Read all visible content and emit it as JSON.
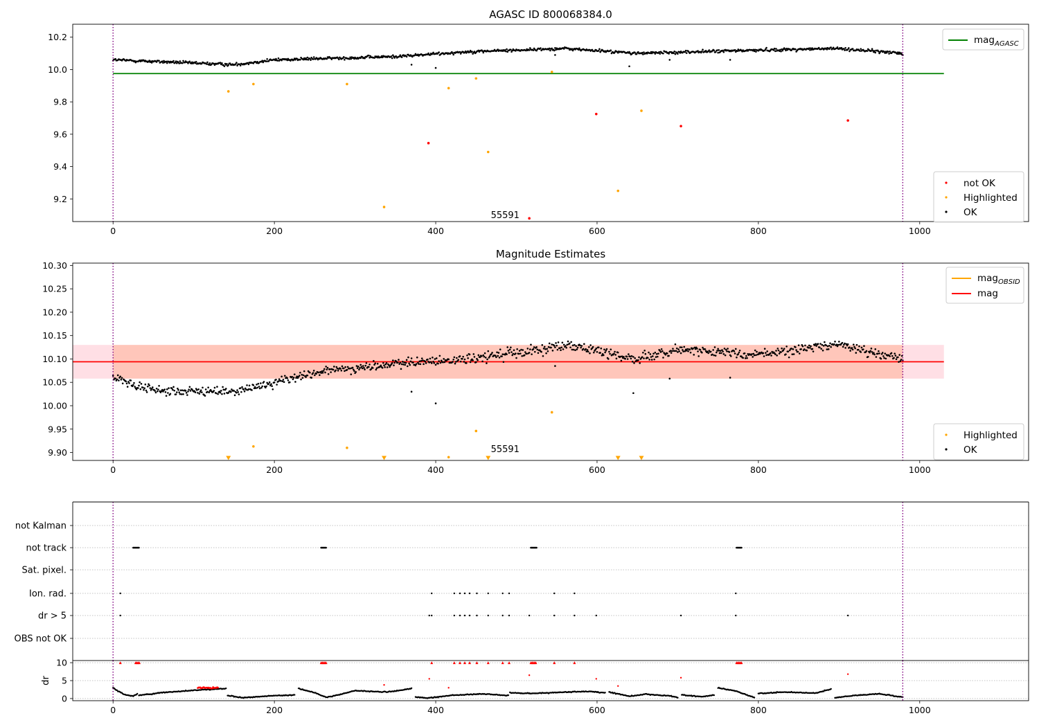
{
  "figure": {
    "title": "AGASC ID 800068384.0",
    "colors": {
      "ok": "#000000",
      "highlighted": "#ffa500",
      "not_ok": "#ff0000",
      "mag_agasc": "#008000",
      "mag": "#ff0000",
      "mag_obsid": "#ffa500",
      "band_outer": "#ffc0cb",
      "band_inner": "#ffa07a",
      "vline": "#800080",
      "grid": "#b0b0b0"
    }
  },
  "chart_data": [
    {
      "id": "top",
      "type": "scatter",
      "title": "AGASC ID 800068384.0",
      "xlim": [
        -50,
        1135
      ],
      "ylim": [
        9.06,
        10.28
      ],
      "xticks": [
        0,
        200,
        400,
        600,
        800,
        1000
      ],
      "yticks": [
        9.2,
        9.4,
        9.6,
        9.8,
        10.0,
        10.2
      ],
      "ytick_labels": [
        "9.2",
        "9.4",
        "9.6",
        "9.8",
        "10.0",
        "10.2"
      ],
      "vlines": [
        0,
        979
      ],
      "hlines": [
        {
          "name": "mag_AGASC",
          "y": 9.975,
          "x": [
            0,
            1030
          ],
          "color": "#008000"
        }
      ],
      "annotation": {
        "text": "55591",
        "x": 470,
        "y": 9.09
      },
      "series": [
        {
          "name": "OK",
          "color": "#000000",
          "ok_trend": {
            "n": 980,
            "x0": 0,
            "x1": 979,
            "knots": [
              [
                0,
                10.06
              ],
              [
                100,
                10.04
              ],
              [
                150,
                10.03
              ],
              [
                200,
                10.06
              ],
              [
                350,
                10.08
              ],
              [
                440,
                10.11
              ],
              [
                560,
                10.13
              ],
              [
                650,
                10.1
              ],
              [
                800,
                10.12
              ],
              [
                900,
                10.13
              ],
              [
                979,
                10.1
              ]
            ],
            "scatter": 0.014
          },
          "outliers": [
            [
              370,
              10.03
            ],
            [
              400,
              10.01
            ],
            [
              640,
              10.02
            ],
            [
              690,
              10.06
            ],
            [
              765,
              10.06
            ],
            [
              548,
              10.09
            ]
          ]
        },
        {
          "name": "Highlighted",
          "color": "#ffa500",
          "points": [
            [
              143,
              9.865
            ],
            [
              174,
              9.91
            ],
            [
              290,
              9.91
            ],
            [
              336,
              9.15
            ],
            [
              416,
              9.885
            ],
            [
              450,
              9.945
            ],
            [
              465,
              9.49
            ],
            [
              544,
              9.985
            ],
            [
              626,
              9.25
            ],
            [
              655,
              9.745
            ]
          ]
        },
        {
          "name": "not OK",
          "color": "#ff0000",
          "points": [
            [
              391,
              9.545
            ],
            [
              516,
              9.08
            ],
            [
              599,
              9.725
            ],
            [
              704,
              9.65
            ],
            [
              911,
              9.685
            ]
          ]
        }
      ],
      "legend_top": {
        "position": "upper right",
        "entries": [
          {
            "label": "mag",
            "sub": "AGASC",
            "color": "#008000"
          }
        ]
      },
      "legend_bottom": {
        "position": "lower right",
        "entries": [
          "not OK",
          "Highlighted",
          "OK"
        ]
      }
    },
    {
      "id": "middle",
      "type": "scatter",
      "title": "Magnitude Estimates",
      "xlim": [
        -50,
        1135
      ],
      "ylim": [
        9.883,
        10.305
      ],
      "xticks": [
        0,
        200,
        400,
        600,
        800,
        1000
      ],
      "yticks": [
        9.9,
        9.95,
        10.0,
        10.05,
        10.1,
        10.15,
        10.2,
        10.25,
        10.3
      ],
      "ytick_labels": [
        "9.90",
        "9.95",
        "10.00",
        "10.05",
        "10.10",
        "10.15",
        "10.20",
        "10.25",
        "10.30"
      ],
      "vlines": [
        0,
        979
      ],
      "hlines": [
        {
          "name": "mag",
          "y": 10.094,
          "x": [
            -50,
            1030
          ],
          "color": "#ff0000"
        }
      ],
      "bands": [
        {
          "y": [
            10.058,
            10.13
          ],
          "x": [
            -50,
            1030
          ],
          "color": "#ffc0cb",
          "alpha": 0.5
        },
        {
          "y": [
            10.058,
            10.13
          ],
          "x": [
            0,
            979
          ],
          "color": "#ffa07a",
          "alpha": 0.4
        }
      ],
      "annotation": {
        "text": "55591",
        "x": 470,
        "y": 9.895
      },
      "series": [
        {
          "name": "OK",
          "color": "#000000",
          "ok_trend": {
            "n": 980,
            "x0": 0,
            "x1": 979,
            "knots": [
              [
                0,
                10.06
              ],
              [
                60,
                10.03
              ],
              [
                150,
                10.03
              ],
              [
                250,
                10.07
              ],
              [
                350,
                10.09
              ],
              [
                450,
                10.1
              ],
              [
                560,
                10.13
              ],
              [
                650,
                10.1
              ],
              [
                700,
                10.12
              ],
              [
                800,
                10.11
              ],
              [
                900,
                10.13
              ],
              [
                979,
                10.1
              ]
            ],
            "scatter": 0.016
          },
          "outliers": [
            [
              370,
              10.03
            ],
            [
              400,
              10.005
            ],
            [
              645,
              10.027
            ],
            [
              690,
              10.058
            ],
            [
              765,
              10.06
            ],
            [
              548,
              10.085
            ]
          ]
        },
        {
          "name": "Highlighted",
          "color": "#ffa500",
          "points": [
            [
              174,
              9.913
            ],
            [
              290,
              9.91
            ],
            [
              416,
              9.89
            ],
            [
              450,
              9.946
            ],
            [
              544,
              9.986
            ]
          ],
          "below_range_markers": [
            143,
            336,
            465,
            626,
            655
          ]
        }
      ],
      "legend_top": {
        "position": "upper right",
        "entries": [
          {
            "label": "mag",
            "sub": "OBSID",
            "color": "#ffa500"
          },
          {
            "label": "mag",
            "sub": "",
            "color": "#ff0000"
          }
        ]
      },
      "legend_bottom": {
        "position": "lower right",
        "entries": [
          "Highlighted",
          "OK"
        ]
      }
    },
    {
      "id": "flags",
      "type": "scatter",
      "xlim": [
        -50,
        1135
      ],
      "categories": [
        "not Kalman",
        "not track",
        "Sat. pixel.",
        "Ion. rad.",
        "dr > 5",
        "OBS not OK"
      ],
      "vlines": [
        0,
        979
      ],
      "flags": {
        "not track": [
          [
            25,
            32
          ],
          [
            258,
            264
          ],
          [
            518,
            525
          ],
          [
            773,
            779
          ]
        ],
        "Ion. rad.": [
          9,
          395,
          423,
          430,
          436,
          442,
          451,
          465,
          483,
          491,
          547,
          572,
          772
        ],
        "dr > 5": [
          9,
          392,
          395,
          423,
          430,
          436,
          442,
          451,
          465,
          483,
          491,
          516,
          547,
          572,
          599,
          704,
          772,
          911
        ]
      }
    },
    {
      "id": "dr",
      "type": "line",
      "ylabel": "dr",
      "xlim": [
        -50,
        1135
      ],
      "ylim": [
        -0.6,
        10.6
      ],
      "xticks": [
        0,
        200,
        400,
        600,
        800,
        1000
      ],
      "yticks": [
        0,
        5,
        10
      ],
      "ytick_labels": [
        "0",
        "5",
        "10"
      ],
      "vlines": [
        0,
        979
      ],
      "segments": [
        {
          "x": [
            0,
            5,
            15,
            25,
            30
          ],
          "y": [
            3.0,
            2.2,
            1.0,
            0.7,
            1.2
          ]
        },
        {
          "x": [
            32,
            60,
            100,
            140
          ],
          "y": [
            0.9,
            1.6,
            2.3,
            2.8
          ]
        },
        {
          "x": [
            142,
            160,
            190,
            225
          ],
          "y": [
            0.9,
            0.2,
            0.7,
            1.0
          ]
        },
        {
          "x": [
            230,
            250,
            265,
            275,
            300,
            340,
            370
          ],
          "y": [
            2.8,
            1.6,
            0.3,
            0.8,
            2.2,
            1.8,
            2.8
          ]
        },
        {
          "x": [
            375,
            390,
            420,
            460,
            490
          ],
          "y": [
            0.4,
            0.1,
            0.9,
            1.3,
            0.8
          ]
        },
        {
          "x": [
            492,
            520,
            560,
            590,
            610
          ],
          "y": [
            1.6,
            1.4,
            1.8,
            2.0,
            1.6
          ]
        },
        {
          "x": [
            615,
            640,
            660,
            690,
            700
          ],
          "y": [
            1.8,
            0.6,
            1.2,
            0.7,
            0.3
          ]
        },
        {
          "x": [
            705,
            730,
            745
          ],
          "y": [
            1.0,
            0.5,
            1.0
          ]
        },
        {
          "x": [
            750,
            770,
            795
          ],
          "y": [
            3.0,
            2.2,
            0.3
          ]
        },
        {
          "x": [
            800,
            830,
            870,
            890
          ],
          "y": [
            1.4,
            1.8,
            1.5,
            2.6
          ]
        },
        {
          "x": [
            895,
            920,
            950,
            979
          ],
          "y": [
            0.2,
            0.9,
            1.3,
            0.4
          ]
        }
      ],
      "red_band": {
        "x": [
          105,
          130
        ],
        "y": 3.0
      },
      "capped_markers": {
        "y": 10,
        "groups": [
          [
            9,
            9
          ],
          [
            28,
            33
          ],
          [
            258,
            264
          ],
          [
            395,
            395
          ],
          [
            423,
            423
          ],
          [
            430,
            430
          ],
          [
            436,
            436
          ],
          [
            442,
            442
          ],
          [
            451,
            451
          ],
          [
            465,
            465
          ],
          [
            483,
            483
          ],
          [
            491,
            491
          ],
          [
            518,
            525
          ],
          [
            547,
            547
          ],
          [
            572,
            572
          ],
          [
            773,
            779
          ]
        ]
      },
      "red_points": [
        [
          336,
          3.8
        ],
        [
          392,
          5.5
        ],
        [
          416,
          3.0
        ],
        [
          516,
          6.5
        ],
        [
          599,
          5.5
        ],
        [
          626,
          3.5
        ],
        [
          704,
          5.8
        ],
        [
          911,
          6.8
        ]
      ]
    }
  ]
}
